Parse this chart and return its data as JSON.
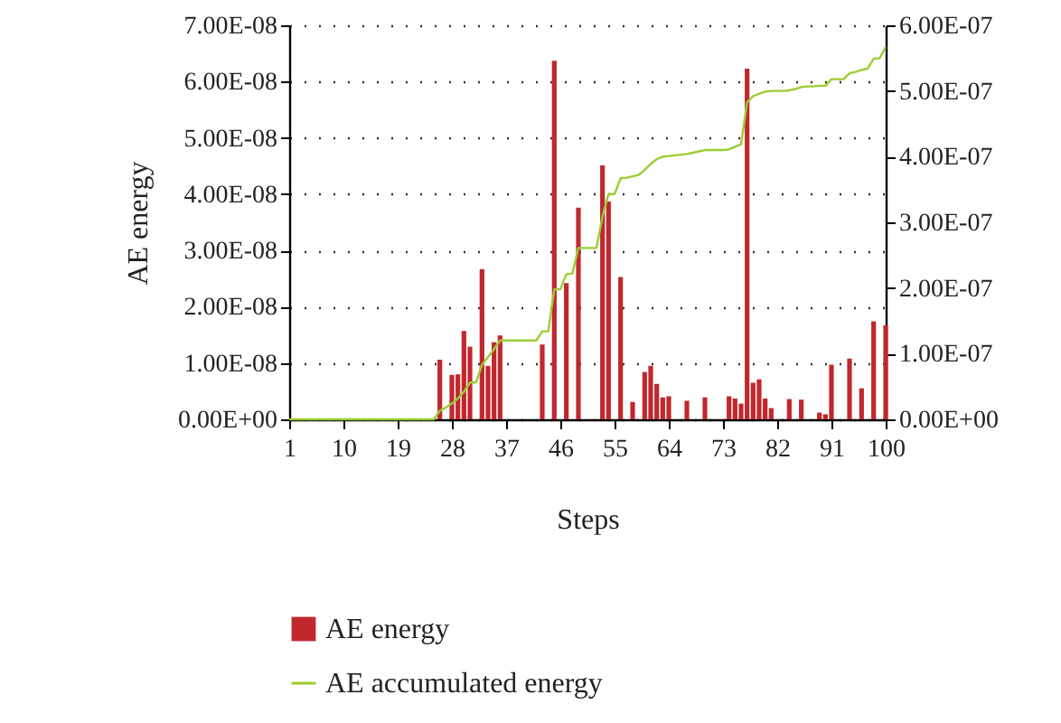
{
  "chart_data": {
    "type": "bar",
    "xlabel": "Steps",
    "ylabel": "AE energy",
    "x": [
      1,
      2,
      3,
      4,
      5,
      6,
      7,
      8,
      9,
      10,
      11,
      12,
      13,
      14,
      15,
      16,
      17,
      18,
      19,
      20,
      21,
      22,
      23,
      24,
      25,
      26,
      27,
      28,
      29,
      30,
      31,
      32,
      33,
      34,
      35,
      36,
      37,
      38,
      39,
      40,
      41,
      42,
      43,
      44,
      45,
      46,
      47,
      48,
      49,
      50,
      51,
      52,
      53,
      54,
      55,
      56,
      57,
      58,
      59,
      60,
      61,
      62,
      63,
      64,
      65,
      66,
      67,
      68,
      69,
      70,
      71,
      72,
      73,
      74,
      75,
      76,
      77,
      78,
      79,
      80,
      81,
      82,
      83,
      84,
      85,
      86,
      87,
      88,
      89,
      90,
      91,
      92,
      93,
      94,
      95,
      96,
      97,
      98,
      99,
      100
    ],
    "xlim": [
      1,
      100
    ],
    "xticks": [
      1,
      10,
      19,
      28,
      37,
      46,
      55,
      64,
      73,
      82,
      91,
      100
    ],
    "ylim": [
      0,
      7e-08
    ],
    "yticks": [
      {
        "value": 0,
        "label": "0.00E+00"
      },
      {
        "value": 1e-08,
        "label": "1.00E-08"
      },
      {
        "value": 2e-08,
        "label": "2.00E-08"
      },
      {
        "value": 3e-08,
        "label": "3.00E-08"
      },
      {
        "value": 4e-08,
        "label": "4.00E-08"
      },
      {
        "value": 5e-08,
        "label": "5.00E-08"
      },
      {
        "value": 6e-08,
        "label": "6.00E-08"
      },
      {
        "value": 7e-08,
        "label": "7.00E-08"
      }
    ],
    "y2lim": [
      0,
      6e-07
    ],
    "y2ticks": [
      {
        "value": 0,
        "label": "0.00E+00"
      },
      {
        "value": 1e-07,
        "label": "1.00E-07"
      },
      {
        "value": 2e-07,
        "label": "2.00E-07"
      },
      {
        "value": 3e-07,
        "label": "3.00E-07"
      },
      {
        "value": 4e-07,
        "label": "4.00E-07"
      },
      {
        "value": 5e-07,
        "label": "5.00E-07"
      },
      {
        "value": 6e-07,
        "label": "6.00E-07"
      }
    ],
    "grid": "y",
    "legend": "bottom",
    "marker": "none",
    "line_style": "solid",
    "series": [
      {
        "name": "AE energy",
        "color": "#c0282d",
        "values": [
          null,
          null,
          null,
          null,
          null,
          null,
          null,
          null,
          null,
          null,
          null,
          null,
          null,
          null,
          null,
          null,
          null,
          null,
          null,
          null,
          null,
          null,
          null,
          null,
          null,
          1.06e-08,
          null,
          7.9e-09,
          8e-09,
          1.57e-08,
          1.29e-08,
          null,
          2.67e-08,
          9.5e-09,
          1.37e-08,
          1.49e-08,
          null,
          null,
          null,
          null,
          null,
          null,
          1.33e-08,
          null,
          6.37e-08,
          null,
          2.42e-08,
          null,
          3.76e-08,
          null,
          null,
          null,
          4.51e-08,
          3.87e-08,
          null,
          2.53e-08,
          null,
          3.1e-09,
          null,
          8.4e-09,
          9.5e-09,
          6.3e-09,
          3.9e-09,
          4.1e-09,
          null,
          null,
          3.3e-09,
          null,
          null,
          3.9e-09,
          null,
          null,
          null,
          4.1e-09,
          3.7e-09,
          2.8e-09,
          6.23e-08,
          6.5e-09,
          7.1e-09,
          3.7e-09,
          2e-09,
          null,
          null,
          3.6e-09,
          null,
          3.5e-09,
          null,
          null,
          1.2e-09,
          9e-10,
          9.7e-09,
          null,
          null,
          1.08e-08,
          null,
          5.5e-09,
          null,
          1.74e-08,
          null,
          1.67e-08
        ]
      },
      {
        "name": "AE accumulated energy",
        "type": "line",
        "axis": "y2",
        "color": "#9acd32",
        "values": [
          0,
          0,
          0,
          0,
          0,
          0,
          0,
          0,
          0,
          0,
          0,
          0,
          0,
          0,
          0,
          0,
          0,
          0,
          0,
          0,
          0,
          0,
          0,
          0,
          0,
          1.3e-08,
          1.8e-08,
          2.4e-08,
          3.2e-08,
          4.2e-08,
          5.6e-08,
          5.6e-08,
          8.3e-08,
          9.5e-08,
          1.07e-07,
          1.2e-07,
          1.2e-07,
          1.2e-07,
          1.2e-07,
          1.2e-07,
          1.2e-07,
          1.2e-07,
          1.34e-07,
          1.34e-07,
          1.98e-07,
          1.98e-07,
          2.21e-07,
          2.22e-07,
          2.61e-07,
          2.61e-07,
          2.61e-07,
          2.61e-07,
          3.09e-07,
          3.43e-07,
          3.43e-07,
          3.67e-07,
          3.68e-07,
          3.7e-07,
          3.72e-07,
          3.8e-07,
          3.89e-07,
          3.96e-07,
          4e-07,
          4.01e-07,
          4.02e-07,
          4.03e-07,
          4.04e-07,
          4.06e-07,
          4.08e-07,
          4.1e-07,
          4.1e-07,
          4.1e-07,
          4.1e-07,
          4.11e-07,
          4.15e-07,
          4.19e-07,
          4.83e-07,
          4.92e-07,
          4.96e-07,
          4.99e-07,
          5e-07,
          5e-07,
          5e-07,
          5.01e-07,
          5.03e-07,
          5.06e-07,
          5.07e-07,
          5.07e-07,
          5.08e-07,
          5.08e-07,
          5.18e-07,
          5.18e-07,
          5.18e-07,
          5.27e-07,
          5.29e-07,
          5.32e-07,
          5.34e-07,
          5.49e-07,
          5.5e-07,
          5.67e-07
        ]
      }
    ]
  }
}
